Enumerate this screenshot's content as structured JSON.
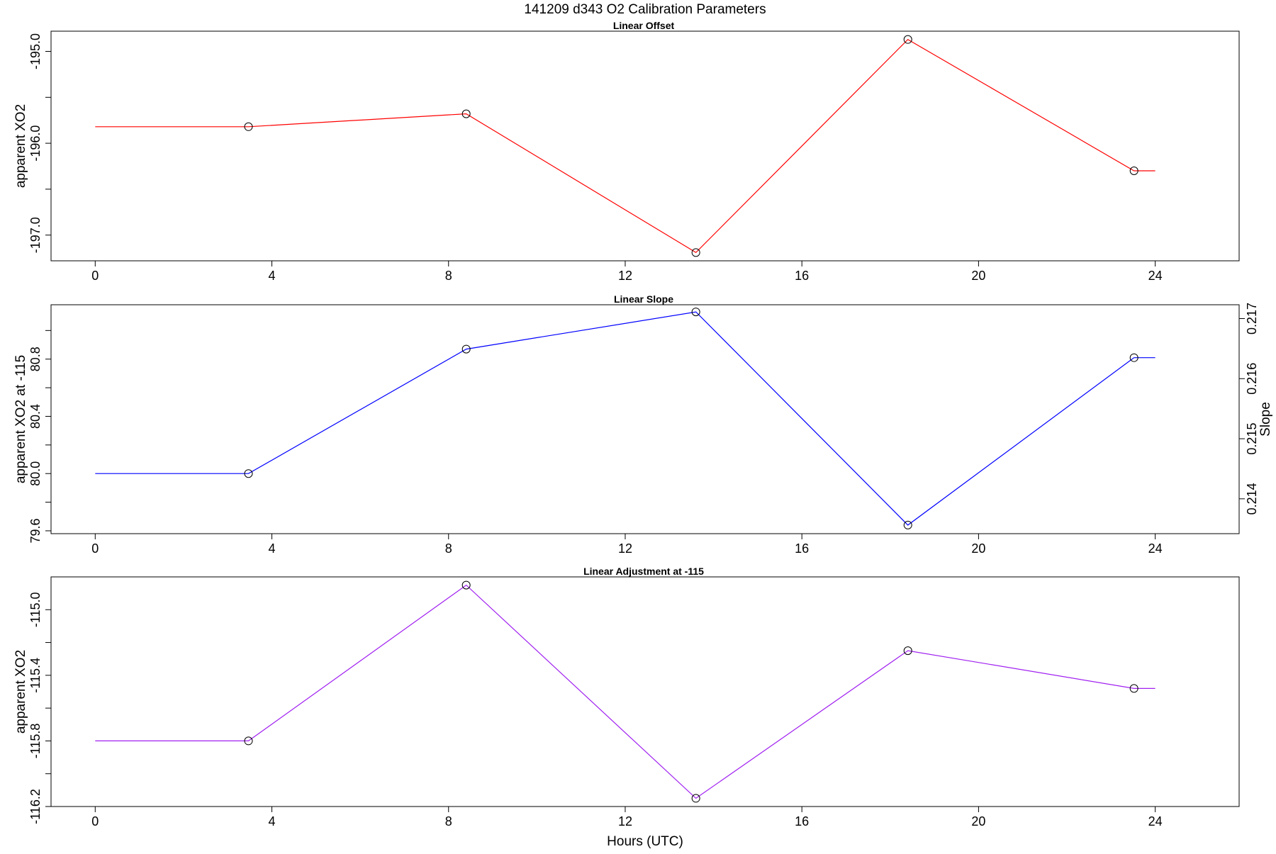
{
  "title": "141209   d343   O2 Calibration Parameters",
  "xlabel": "Hours (UTC)",
  "chart_data": [
    {
      "type": "line",
      "title": "Linear Offset",
      "ylabel": "apparent XO2",
      "color": "#ff0000",
      "x": [
        0,
        3.47,
        8.4,
        13.6,
        18.4,
        23.52,
        24
      ],
      "y": [
        -195.82,
        -195.82,
        -195.68,
        -197.19,
        -194.87,
        -196.3,
        -196.3
      ],
      "marker_x": [
        3.47,
        8.4,
        13.6,
        18.4,
        23.52
      ],
      "marker_y": [
        -195.82,
        -195.68,
        -197.19,
        -194.87,
        -196.3
      ],
      "xlim": [
        -1,
        25.9
      ],
      "ylim": [
        -197.28,
        -194.78
      ],
      "xticks": [
        0,
        4,
        8,
        12,
        16,
        20,
        24
      ],
      "xtick_labels": [
        "0",
        "4",
        "8",
        "12",
        "16",
        "20",
        "24"
      ],
      "yticks": [
        -197.0,
        -196.5,
        -196.0,
        -195.5,
        -195.0
      ],
      "ytick_labels": [
        "-197.0",
        "",
        "-196.0",
        "",
        "-195.0"
      ]
    },
    {
      "type": "line",
      "title": "Linear Slope",
      "ylabel": "apparent XO2 at -115",
      "ylabel_right": "Slope",
      "color": "#0000ff",
      "x": [
        0,
        3.47,
        8.4,
        13.6,
        18.4,
        23.52,
        24
      ],
      "y": [
        80.0,
        80.0,
        80.87,
        81.13,
        79.64,
        80.81,
        80.81
      ],
      "marker_x": [
        3.47,
        8.4,
        13.6,
        18.4,
        23.52
      ],
      "marker_y": [
        80.0,
        80.87,
        81.13,
        79.64,
        80.81
      ],
      "xlim": [
        -1,
        25.9
      ],
      "ylim": [
        79.58,
        81.18
      ],
      "xticks": [
        0,
        4,
        8,
        12,
        16,
        20,
        24
      ],
      "xtick_labels": [
        "0",
        "4",
        "8",
        "12",
        "16",
        "20",
        "24"
      ],
      "yticks": [
        79.6,
        79.8,
        80.0,
        80.2,
        80.4,
        80.6,
        80.8,
        81.0
      ],
      "ytick_labels": [
        "79.6",
        "",
        "80.0",
        "",
        "80.4",
        "",
        "80.8",
        ""
      ],
      "right_axis": {
        "ticks": [
          0.214,
          0.215,
          0.216,
          0.217
        ],
        "tick_labels": [
          "0.214",
          "0.215",
          "0.216",
          "0.217"
        ],
        "ylim": [
          0.21342,
          0.21723
        ]
      }
    },
    {
      "type": "line",
      "title": "Linear Adjustment at -115",
      "ylabel": "apparent XO2",
      "color": "#a020f0",
      "x": [
        0,
        3.47,
        8.4,
        13.6,
        18.4,
        23.52,
        24
      ],
      "y": [
        -115.8,
        -115.8,
        -114.85,
        -116.15,
        -115.25,
        -115.48,
        -115.48
      ],
      "marker_x": [
        3.47,
        8.4,
        13.6,
        18.4,
        23.52
      ],
      "marker_y": [
        -115.8,
        -114.85,
        -116.15,
        -115.25,
        -115.48
      ],
      "xlim": [
        -1,
        25.9
      ],
      "ylim": [
        -116.2,
        -114.8
      ],
      "xticks": [
        0,
        4,
        8,
        12,
        16,
        20,
        24
      ],
      "xtick_labels": [
        "0",
        "4",
        "8",
        "12",
        "16",
        "20",
        "24"
      ],
      "yticks": [
        -116.2,
        -116.0,
        -115.8,
        -115.6,
        -115.4,
        -115.2,
        -115.0
      ],
      "ytick_labels": [
        "-116.2",
        "",
        "-115.8",
        "",
        "-115.4",
        "",
        "-115.0"
      ]
    }
  ]
}
